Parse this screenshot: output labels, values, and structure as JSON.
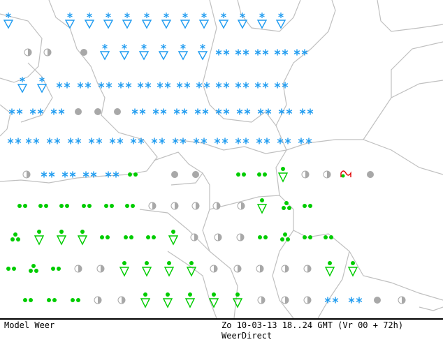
{
  "footer": {
    "product": "Model Weer",
    "valid_time": "Zo 10-03-13 18..24 GMT (Vr 00 + 72h)",
    "credit": "WeerDirect"
  },
  "colors": {
    "snow": "#1e9bf0",
    "rain": "#00cc00",
    "cloud": "#a8a8a8",
    "fog": "#e00000",
    "borders": "#c0c0c0"
  },
  "legend_symbols": {
    "snow-shower": "snow symbol over downward triangle",
    "snow": "double asterisk",
    "rain-shower": "dot over downward triangle",
    "rain": "two dots",
    "heavy-rain": "three dots",
    "overcast": "filled grey circle",
    "partly-cloudy": "half-filled grey circle",
    "fog": "fog symbol"
  },
  "weather_grid": [
    "snow-shower snow-shower snow-shower snow-shower snow-shower snow-shower snow-shower snow-shower snow-shower snow-shower snow-shower snow-shower snow-shower",
    "partly-cloudy partly-cloudy overcast snow-shower snow-shower snow-shower snow-shower snow-shower snow-shower snow snow snow snow snow",
    "snow-shower snow-shower snow snow snow snow snow snow snow snow snow snow snow snow",
    "snow snow snow overcast overcast overcast snow snow snow snow snow snow snow snow snow",
    "snow snow snow snow snow snow snow snow snow snow snow snow snow snow snow",
    "partly-cloudy snow snow snow snow rain overcast overcast rain rain rain-shower partly-cloudy partly-cloudy fog overcast",
    "rain rain rain rain rain rain partly-cloudy partly-cloudy partly-cloudy partly-cloudy partly-cloudy rain-shower heavy-rain rain",
    "heavy-rain rain-shower rain-shower rain-shower rain rain rain rain-shower partly-cloudy partly-cloudy partly-cloudy rain heavy-rain rain rain",
    "rain heavy-rain rain partly-cloudy partly-cloudy rain-shower rain-shower rain-shower rain-shower partly-cloudy partly-cloudy partly-cloudy partly-cloudy partly-cloudy rain-shower rain-shower",
    "rain rain rain partly-cloudy partly-cloudy rain-shower rain-shower rain-shower rain-shower rain-shower partly-cloudy partly-cloudy partly-cloudy snow snow overcast partly-cloudy"
  ]
}
